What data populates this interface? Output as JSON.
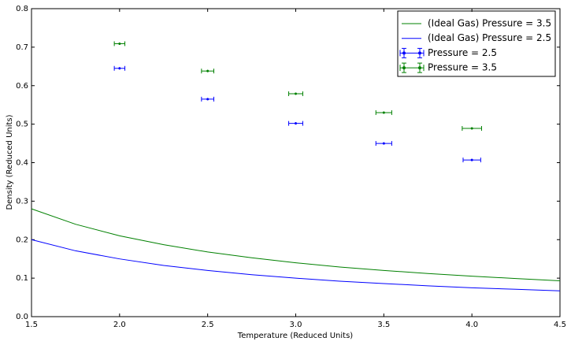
{
  "chart_data": {
    "type": "line",
    "xlabel": "Temperature (Reduced Units)",
    "ylabel": "Density (Reduced Units)",
    "xlim": [
      1.5,
      4.5
    ],
    "ylim": [
      0,
      0.8
    ],
    "xticks": [
      1.5,
      {
        "value": 2,
        "label": "2.0"
      },
      2.5,
      {
        "value": 3,
        "label": "3.0"
      },
      3.5,
      {
        "value": 4,
        "label": "4.0"
      },
      4.5
    ],
    "yticks": [
      {
        "value": 0,
        "label": "0.0"
      },
      0.1,
      0.2,
      0.3,
      0.4,
      0.5,
      0.6,
      0.7,
      0.8
    ],
    "grid": false,
    "legend": "upper right",
    "series": [
      {
        "name": "(Ideal Gas) Pressure = 3.5",
        "type": "line",
        "color": "#008000",
        "x": [
          1.5,
          1.75,
          2.0,
          2.25,
          2.5,
          2.75,
          3.0,
          3.25,
          3.5,
          3.75,
          4.0,
          4.25,
          4.5
        ],
        "values": [
          0.28,
          0.24,
          0.21,
          0.187,
          0.168,
          0.153,
          0.14,
          0.129,
          0.12,
          0.112,
          0.105,
          0.099,
          0.093
        ]
      },
      {
        "name": "(Ideal Gas) Pressure = 2.5",
        "type": "line",
        "color": "#0000ff",
        "x": [
          1.5,
          1.75,
          2.0,
          2.25,
          2.5,
          2.75,
          3.0,
          3.25,
          3.5,
          3.75,
          4.0,
          4.25,
          4.5
        ],
        "values": [
          0.2,
          0.171,
          0.15,
          0.133,
          0.12,
          0.109,
          0.1,
          0.092,
          0.086,
          0.08,
          0.075,
          0.071,
          0.067
        ]
      },
      {
        "name": "Pressure = 2.5",
        "type": "errorbar",
        "color": "#0000ff",
        "x": [
          2.0,
          2.5,
          3.0,
          3.5,
          4.0
        ],
        "values": [
          0.645,
          0.565,
          0.502,
          0.45,
          0.407
        ],
        "xerr": [
          0.03,
          0.035,
          0.04,
          0.045,
          0.05
        ],
        "yerr": [
          0.003,
          0.003,
          0.003,
          0.003,
          0.003
        ]
      },
      {
        "name": "Pressure = 3.5",
        "type": "errorbar",
        "color": "#008000",
        "x": [
          2.0,
          2.5,
          3.0,
          3.5,
          4.0
        ],
        "values": [
          0.709,
          0.638,
          0.579,
          0.53,
          0.489
        ],
        "xerr": [
          0.03,
          0.035,
          0.04,
          0.045,
          0.055
        ],
        "yerr": [
          0.003,
          0.003,
          0.003,
          0.003,
          0.003
        ]
      }
    ]
  }
}
